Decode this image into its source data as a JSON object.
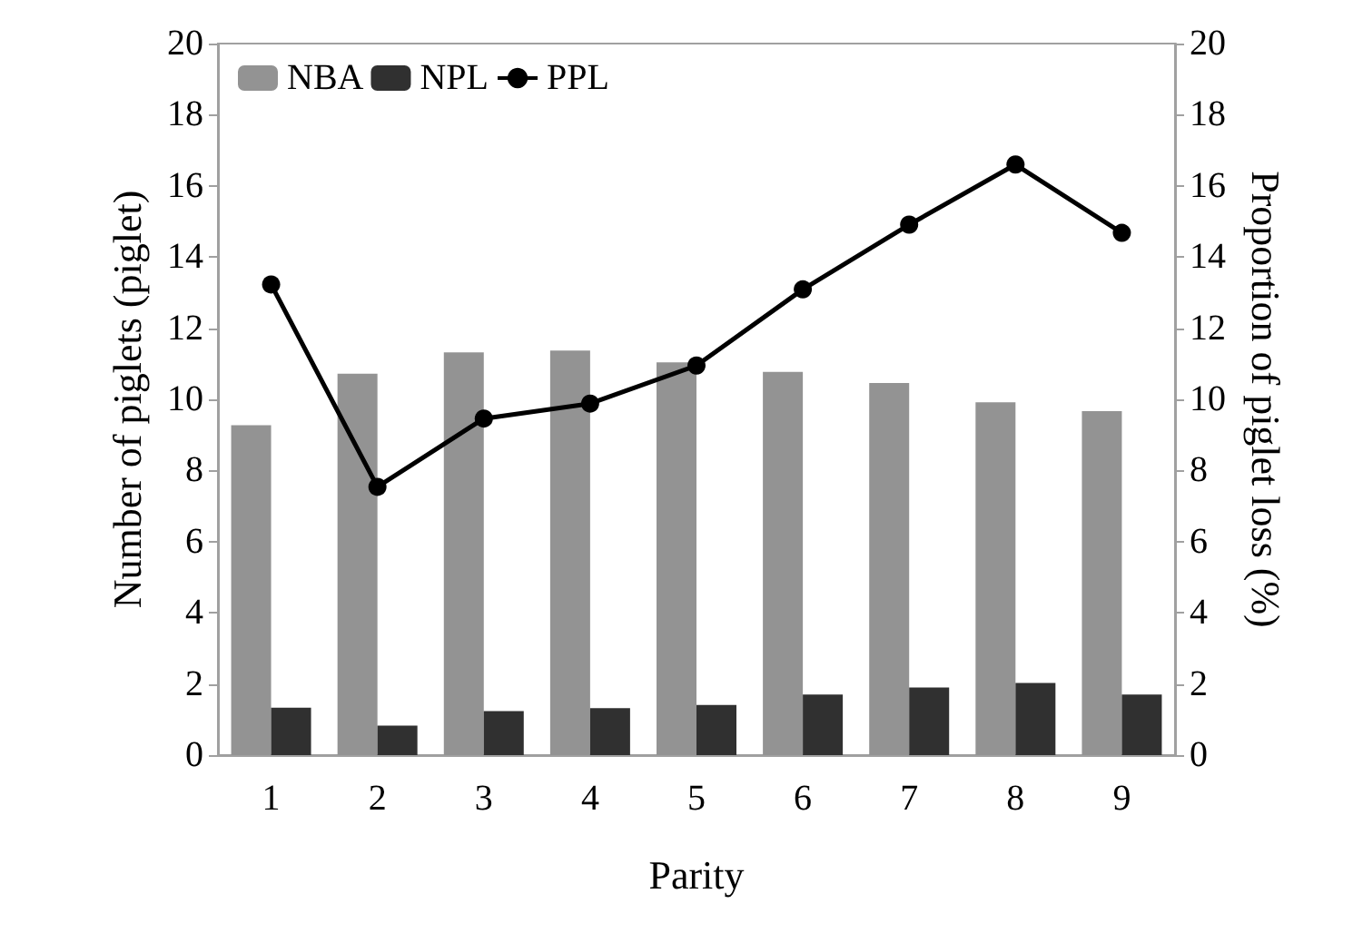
{
  "chart_data": {
    "type": "bar",
    "xlabel": "Parity",
    "ylabel": "Number of piglets (piglet)",
    "y2label": "Proportion of piglet loss (%)",
    "categories": [
      "1",
      "2",
      "3",
      "4",
      "5",
      "6",
      "7",
      "8",
      "9"
    ],
    "series": [
      {
        "name": "NBA",
        "color": "#939393",
        "values": [
          9.27,
          10.72,
          11.32,
          11.37,
          11.04,
          10.77,
          10.46,
          9.92,
          9.67
        ]
      },
      {
        "name": "NPL",
        "color": "#303030",
        "values": [
          1.33,
          0.83,
          1.24,
          1.32,
          1.41,
          1.7,
          1.9,
          2.03,
          1.7
        ]
      },
      {
        "name": "PPL",
        "type": "line",
        "axis": "y2",
        "color": "#000000",
        "marker": "circle",
        "values": [
          13.23,
          7.54,
          9.46,
          9.88,
          10.95,
          13.09,
          14.91,
          16.6,
          14.68
        ]
      }
    ],
    "ylim": [
      0,
      20
    ],
    "yticks": [
      0,
      2,
      4,
      6,
      8,
      10,
      12,
      14,
      16,
      18,
      20
    ],
    "y2lim": [
      0,
      20
    ],
    "y2ticks": [
      0,
      2,
      4,
      6,
      8,
      10,
      12,
      14,
      16,
      18,
      20
    ],
    "grid": false,
    "legend": "top left"
  }
}
